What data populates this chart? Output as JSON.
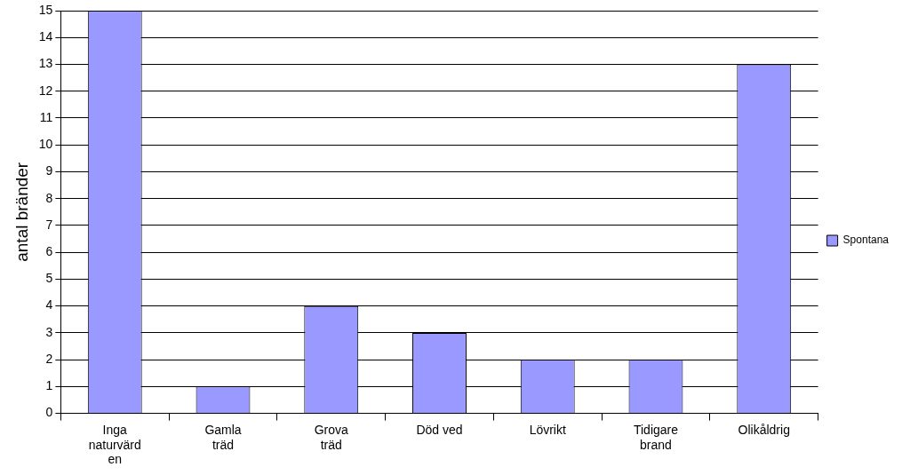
{
  "chart_data": {
    "type": "bar",
    "ylabel": "antal bränder",
    "categories": [
      "Inga naturvärden",
      "Gamla träd",
      "Grova träd",
      "Död ved",
      "Lövrikt",
      "Tidigare brand",
      "Olikåldrig"
    ],
    "series": [
      {
        "name": "Spontana",
        "color": "#9999ff",
        "values": [
          15,
          1,
          4,
          3,
          2,
          2,
          13
        ]
      }
    ],
    "ylim": [
      0,
      15
    ],
    "yticks": [
      0,
      1,
      2,
      3,
      4,
      5,
      6,
      7,
      8,
      9,
      10,
      11,
      12,
      13,
      14,
      15
    ],
    "grid": "y",
    "legend": "right"
  }
}
